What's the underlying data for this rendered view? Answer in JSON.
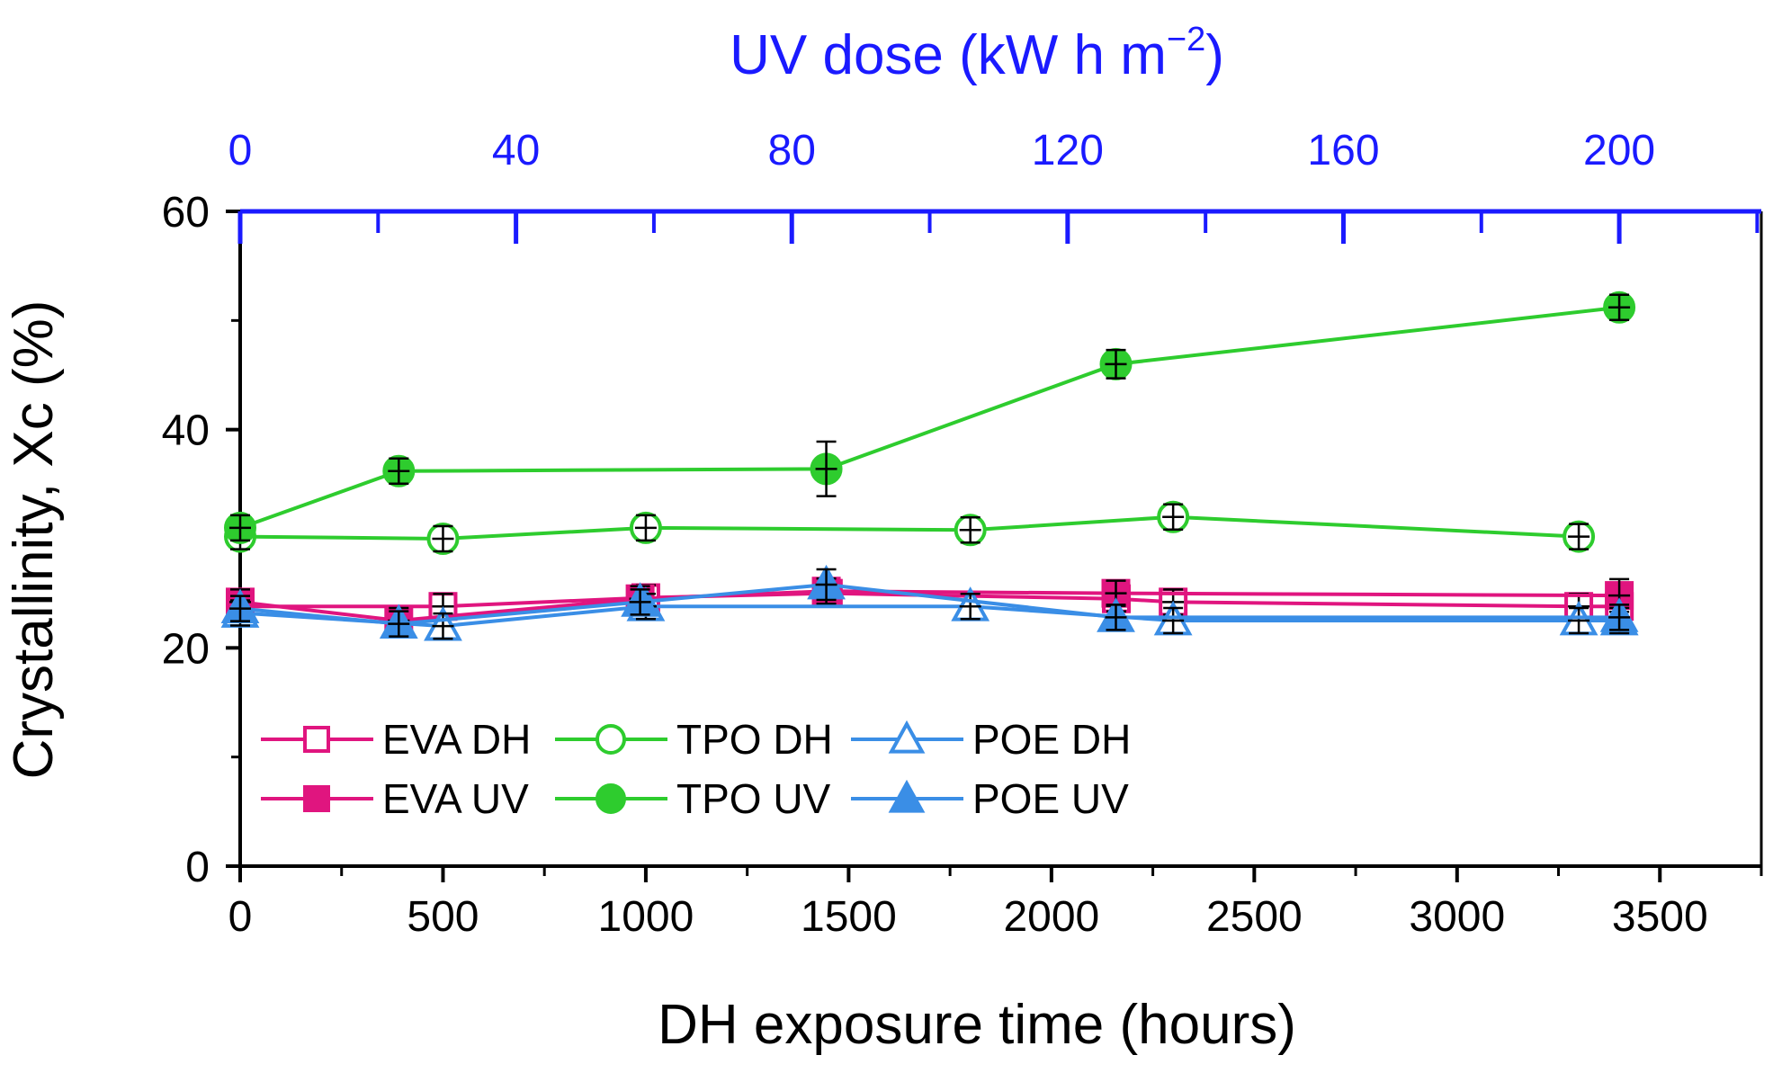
{
  "chart_data": {
    "type": "scatter",
    "xlabel": "DH exposure time (hours)",
    "ylabel": "Crystallinity, Xc (%)",
    "x2label_main": "UV dose (kW h m",
    "x2label_sup": "−2",
    "x2label_close": ")",
    "xlim": [
      0,
      3750
    ],
    "ylim": [
      0,
      60
    ],
    "x2lim": [
      0,
      220.6
    ],
    "xticks": [
      0,
      500,
      1000,
      1500,
      2000,
      2500,
      3000,
      3500
    ],
    "xticks_minor": [
      250,
      750,
      1250,
      1750,
      2250,
      2750,
      3250,
      3750
    ],
    "yticks": [
      0,
      20,
      40,
      60
    ],
    "yticks_minor": [
      10,
      30,
      50
    ],
    "x2ticks": [
      0,
      40,
      80,
      120,
      160,
      200
    ],
    "x2ticks_minor": [
      20,
      60,
      100,
      140,
      180,
      220
    ],
    "grid": false,
    "legend_position": "bottom-left",
    "series": [
      {
        "name": "EVA DH",
        "color": "#e0157f",
        "marker": "square",
        "filled": false,
        "axis": "bottom",
        "x": [
          0,
          500,
          1000,
          1450,
          2160,
          2300,
          3300,
          3400
        ],
        "y": [
          23.8,
          23.8,
          24.6,
          25.0,
          24.5,
          24.2,
          23.8,
          23.8
        ],
        "err": [
          0.4,
          0.4,
          0.4,
          0.6,
          0.4,
          0.4,
          0.4,
          0.4
        ]
      },
      {
        "name": "EVA UV",
        "color": "#e0157f",
        "marker": "square",
        "filled": true,
        "axis": "top",
        "x": [
          0,
          23,
          58,
          85,
          127,
          200
        ],
        "y": [
          24.2,
          22.5,
          24.5,
          25.2,
          25.0,
          24.8
        ],
        "err": [
          0.5,
          0.5,
          0.5,
          0.7,
          0.5,
          1.5
        ]
      },
      {
        "name": "TPO DH",
        "color": "#2ecc2e",
        "marker": "circle",
        "filled": false,
        "axis": "bottom",
        "x": [
          0,
          500,
          1000,
          1800,
          2300,
          3300
        ],
        "y": [
          30.2,
          30.0,
          31.0,
          30.8,
          32.0,
          30.2
        ],
        "err": [
          0.5,
          0.5,
          0.6,
          0.5,
          0.6,
          0.5
        ]
      },
      {
        "name": "TPO UV",
        "color": "#2ecc2e",
        "marker": "circle",
        "filled": true,
        "axis": "top",
        "x": [
          0,
          23,
          85,
          127,
          200
        ],
        "y": [
          31.0,
          36.2,
          36.4,
          46.0,
          51.2
        ],
        "err": [
          0.5,
          0.6,
          2.5,
          1.3,
          0.5
        ]
      },
      {
        "name": "POE DH",
        "color": "#3a8ee6",
        "marker": "triangle",
        "filled": false,
        "axis": "bottom",
        "x": [
          0,
          500,
          1000,
          1800,
          2300,
          3300,
          3400
        ],
        "y": [
          23.2,
          22.0,
          23.8,
          23.8,
          22.5,
          22.5,
          22.5
        ],
        "err": [
          0.5,
          0.6,
          0.8,
          0.8,
          0.6,
          0.5,
          0.5
        ]
      },
      {
        "name": "POE UV",
        "color": "#3a8ee6",
        "marker": "triangle",
        "filled": true,
        "axis": "top",
        "x": [
          0,
          23,
          58,
          85,
          127,
          200
        ],
        "y": [
          23.6,
          22.2,
          24.2,
          25.8,
          22.8,
          22.8
        ],
        "err": [
          0.6,
          0.6,
          0.8,
          1.4,
          0.8,
          0.8
        ]
      }
    ]
  },
  "colors": {
    "axis_main": "#000000",
    "axis_top": "#1a1aff"
  }
}
